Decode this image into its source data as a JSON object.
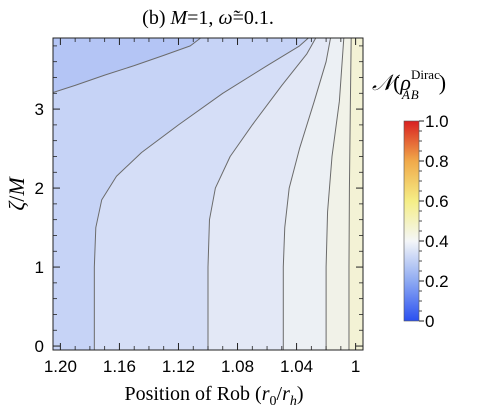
{
  "chart_data": {
    "type": "heatmap",
    "subtype": "contour",
    "title": "(b) M=1, ω̃=0.1.",
    "title_parts": {
      "panel": "(b) ",
      "M": "M",
      "eq1": "=1, ",
      "omega": "ω̃",
      "eq2": "=0.1."
    },
    "xlabel": "Position of Rob (r₀/rₕ)",
    "xlabel_parts": {
      "main": "Position of Rob (",
      "r0": "r",
      "r0_sub": "0",
      "slash": "/",
      "rh": "r",
      "rh_sub": "h",
      "close": ")"
    },
    "ylabel": "ζ/M",
    "ylabel_parts": {
      "zeta": "ζ",
      "slash": "/",
      "M": "M"
    },
    "colorbar_label": "𝒩(ρ_{AB̄}^{Dirac})",
    "colorbar_label_parts": {
      "N": "𝒩",
      "open": "(",
      "rho": "ρ",
      "sup": "Dirac",
      "sub_A": "A",
      "sub_B": "B",
      "close": ")"
    },
    "x_reversed": true,
    "xlim": [
      1.205,
      0.995
    ],
    "ylim": [
      -0.05,
      3.9
    ],
    "x_ticks": [
      1.2,
      1.16,
      1.12,
      1.08,
      1.04,
      1.0
    ],
    "x_tick_labels": [
      "1.20",
      "1.16",
      "1.12",
      "1.08",
      "1.04",
      "1"
    ],
    "y_ticks": [
      0,
      1,
      2,
      3
    ],
    "y_tick_labels": [
      "0",
      "1",
      "2",
      "3"
    ],
    "colorbar": {
      "range": [
        0,
        1.0
      ],
      "ticks": [
        0,
        0.2,
        0.4,
        0.6,
        0.8,
        1.0
      ],
      "tick_labels": [
        "0",
        "0.2",
        "0.4",
        "0.6",
        "0.8",
        "1.0"
      ],
      "colormap": "blue-white-yellow-red",
      "stops": [
        {
          "value": 0.0,
          "color": "#2a4ff0"
        },
        {
          "value": 0.2,
          "color": "#8eaaf2"
        },
        {
          "value": 0.4,
          "color": "#f4f6f8"
        },
        {
          "value": 0.6,
          "color": "#f5ee86"
        },
        {
          "value": 0.8,
          "color": "#f0a94a"
        },
        {
          "value": 1.0,
          "color": "#d92020"
        }
      ]
    },
    "bands": [
      {
        "level_range": [
          0.15,
          0.2
        ],
        "color": "#b4c5f5"
      },
      {
        "level_range": [
          0.2,
          0.25
        ],
        "color": "#c6d3f6"
      },
      {
        "level_range": [
          0.25,
          0.3
        ],
        "color": "#d5def7"
      },
      {
        "level_range": [
          0.3,
          0.35
        ],
        "color": "#e3e8f6"
      },
      {
        "level_range": [
          0.35,
          0.4
        ],
        "color": "#ecf0f4"
      },
      {
        "level_range": [
          0.4,
          0.45
        ],
        "color": "#f1f2e8"
      },
      {
        "level_range": [
          0.45,
          0.5
        ],
        "color": "#f3f2d5"
      }
    ],
    "contours": [
      {
        "level": 0.2,
        "points": [
          [
            1.205,
            3.21
          ],
          [
            1.19,
            3.3
          ],
          [
            1.17,
            3.43
          ],
          [
            1.15,
            3.55
          ],
          [
            1.13,
            3.68
          ],
          [
            1.112,
            3.8
          ],
          [
            1.105,
            3.9
          ]
        ]
      },
      {
        "level": 0.25,
        "points": [
          [
            1.177,
            -0.05
          ],
          [
            1.177,
            0.4
          ],
          [
            1.177,
            1.0
          ],
          [
            1.176,
            1.5
          ],
          [
            1.172,
            1.85
          ],
          [
            1.162,
            2.15
          ],
          [
            1.145,
            2.45
          ],
          [
            1.12,
            2.8
          ],
          [
            1.09,
            3.2
          ],
          [
            1.06,
            3.55
          ],
          [
            1.038,
            3.8
          ],
          [
            1.032,
            3.9
          ]
        ]
      },
      {
        "level": 0.3,
        "points": [
          [
            1.1,
            -0.05
          ],
          [
            1.1,
            0.5
          ],
          [
            1.1,
            1.0
          ],
          [
            1.099,
            1.6
          ],
          [
            1.095,
            2.0
          ],
          [
            1.085,
            2.4
          ],
          [
            1.07,
            2.8
          ],
          [
            1.05,
            3.3
          ],
          [
            1.033,
            3.7
          ],
          [
            1.027,
            3.9
          ]
        ]
      },
      {
        "level": 0.35,
        "points": [
          [
            1.049,
            -0.05
          ],
          [
            1.049,
            0.5
          ],
          [
            1.049,
            1.0
          ],
          [
            1.048,
            1.5
          ],
          [
            1.045,
            2.0
          ],
          [
            1.038,
            2.5
          ],
          [
            1.028,
            3.1
          ],
          [
            1.02,
            3.6
          ],
          [
            1.017,
            3.9
          ]
        ]
      },
      {
        "level": 0.4,
        "points": [
          [
            1.02,
            -0.05
          ],
          [
            1.02,
            0.5
          ],
          [
            1.02,
            1.0
          ],
          [
            1.019,
            1.7
          ],
          [
            1.016,
            2.4
          ],
          [
            1.011,
            3.1
          ],
          [
            1.008,
            3.9
          ]
        ]
      },
      {
        "level": 0.45,
        "points": [
          [
            1.0045,
            -0.05
          ],
          [
            1.0045,
            1.0
          ],
          [
            1.0042,
            2.0
          ],
          [
            1.0036,
            3.0
          ],
          [
            1.003,
            3.9
          ]
        ]
      }
    ]
  }
}
